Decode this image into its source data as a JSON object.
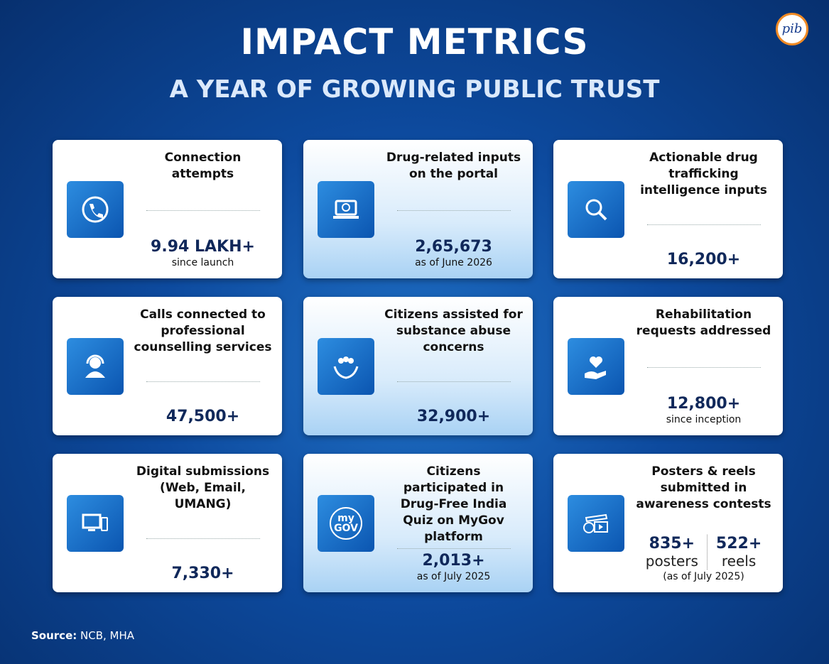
{
  "header": {
    "title": "IMPACT METRICS",
    "subtitle": "A YEAR OF GROWING PUBLIC TRUST",
    "logo": "pib"
  },
  "cards": [
    {
      "label": "Connection attempts",
      "value": "9.94 LAKH+",
      "note": "since launch"
    },
    {
      "label": "Drug-related inputs on the portal",
      "value": "2,65,673",
      "note": "as of June 2026"
    },
    {
      "label": "Actionable drug trafficking intelligence inputs",
      "value": "16,200+"
    },
    {
      "label": "Calls connected to professional counselling services",
      "value": "47,500+"
    },
    {
      "label": "Citizens assisted for substance abuse concerns",
      "value": "32,900+"
    },
    {
      "label": "Rehabilitation requests addressed",
      "value": "12,800+",
      "note": "since inception"
    },
    {
      "label": "Digital submissions (Web, Email, UMANG)",
      "value": "7,330+"
    },
    {
      "label": "Citizens participated in Drug-Free India Quiz on MyGov platform",
      "value": "2,013+",
      "note": "as of July 2025",
      "icon_text": [
        "my",
        "GOV"
      ]
    },
    {
      "label": "Posters & reels submitted in awareness contests",
      "stats": [
        {
          "value": "835+",
          "unit": "posters"
        },
        {
          "value": "522+",
          "unit": "reels"
        }
      ],
      "note": "(as of July 2025)"
    }
  ],
  "source": {
    "label": "Source:",
    "text": "NCB, MHA"
  }
}
